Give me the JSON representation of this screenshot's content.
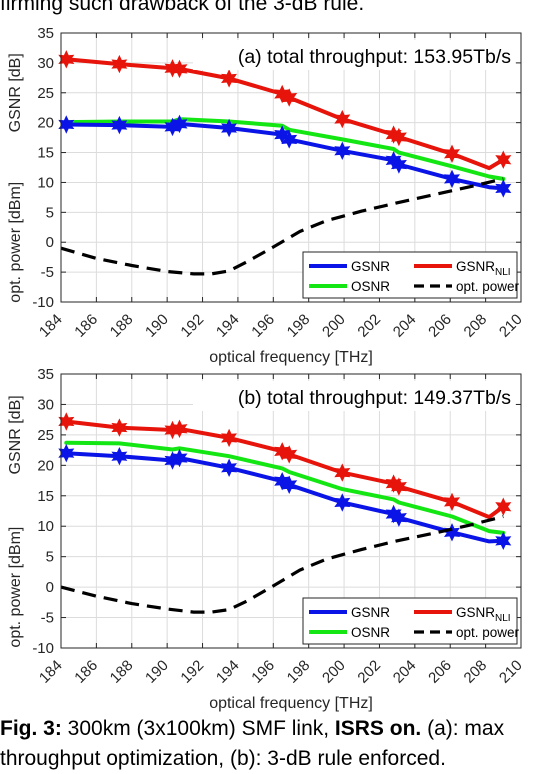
{
  "intro_text": "firming such drawback of the 3-dB rule.",
  "caption": {
    "label": "Fig. 3:",
    "part1": " 300km (3x100km) SMF link, ",
    "bold2": "ISRS on.",
    "part3": " (a): max",
    "line2": "throughput optimization, (b): 3-dB rule enforced."
  },
  "colors": {
    "gsnr": "#0a14e6",
    "gsnr_nli": "#e6140a",
    "osnr": "#14e614",
    "power": "#000000"
  },
  "chart_data": [
    {
      "type": "line",
      "title": "(a) total throughput: 153.95Tb/s",
      "xlabel": "optical frequency [THz]",
      "ylabel_upper": "GSNR [dB]",
      "ylabel_lower": "opt. power [dBm]",
      "xlim": [
        184,
        210
      ],
      "ylim": [
        -10,
        35
      ],
      "x_ticks": [
        184,
        186,
        188,
        190,
        192,
        194,
        196,
        198,
        200,
        202,
        204,
        206,
        208,
        210
      ],
      "y_ticks": [
        -10,
        -5,
        0,
        5,
        10,
        15,
        20,
        25,
        30,
        35
      ],
      "grid": true,
      "legend": {
        "position": "bottom-right",
        "entries": [
          {
            "label": "GSNR",
            "sub": "",
            "series": "gsnr"
          },
          {
            "label": "GSNR",
            "sub": "NLI",
            "series": "gsnr_nli"
          },
          {
            "label": "OSNR",
            "sub": "",
            "series": "osnr"
          },
          {
            "label": "opt. power",
            "sub": "",
            "series": "power"
          }
        ]
      },
      "series": [
        {
          "key": "gsnr_nli",
          "name": "GSNR_NLI",
          "x": [
            184.3,
            187.3,
            190.3,
            190.7,
            193.5,
            196.5,
            196.9,
            199.9,
            202.8,
            203.1,
            206.1,
            208.2,
            209
          ],
          "y": [
            30.6,
            29.8,
            29.1,
            29,
            27.4,
            24.8,
            24.2,
            20.6,
            18,
            17.6,
            14.8,
            12.4,
            13.8
          ],
          "markers_x": [
            184.3,
            187.3,
            190.3,
            190.7,
            193.5,
            196.5,
            196.9,
            199.9,
            202.8,
            203.1,
            206.1,
            209
          ],
          "markers_y": [
            30.6,
            29.8,
            29.1,
            29,
            27.4,
            24.8,
            24.2,
            20.6,
            18,
            17.6,
            14.8,
            13.8
          ]
        },
        {
          "key": "osnr",
          "name": "OSNR",
          "x": [
            184.3,
            187.3,
            190.3,
            190.7,
            193.5,
            196.5,
            196.9,
            199.9,
            202.8,
            203.1,
            206.1,
            208.2,
            209
          ],
          "y": [
            20.1,
            20.2,
            20.2,
            20.6,
            20.2,
            19.5,
            18.8,
            17.2,
            15.6,
            15,
            12.7,
            11,
            10.6
          ]
        },
        {
          "key": "gsnr",
          "name": "GSNR",
          "x": [
            184.3,
            187.3,
            190.3,
            190.7,
            193.5,
            196.5,
            196.9,
            199.9,
            202.8,
            203.1,
            206.1,
            208.2,
            209
          ],
          "y": [
            19.7,
            19.6,
            19.3,
            19.8,
            19.1,
            18,
            17.2,
            15.3,
            13.7,
            13,
            10.6,
            9.2,
            9
          ],
          "markers_x": [
            184.3,
            187.3,
            190.3,
            190.7,
            193.5,
            196.5,
            196.9,
            199.9,
            202.8,
            203.1,
            206.1,
            209
          ],
          "markers_y": [
            19.7,
            19.6,
            19.3,
            19.8,
            19.1,
            18,
            17.2,
            15.3,
            13.7,
            13,
            10.6,
            9
          ]
        },
        {
          "key": "power",
          "name": "opt. power",
          "dashed": true,
          "x": [
            184,
            186,
            188,
            190,
            191.5,
            192.5,
            193.5,
            194.5,
            196,
            197.5,
            199,
            201,
            203,
            205,
            207,
            209
          ],
          "y": [
            -1,
            -2.7,
            -3.9,
            -4.9,
            -5.3,
            -5.3,
            -4.8,
            -3.3,
            -0.8,
            1.8,
            3.6,
            5.2,
            6.6,
            7.9,
            9.2,
            10.6
          ]
        }
      ]
    },
    {
      "type": "line",
      "title": "(b) total throughput: 149.37Tb/s",
      "xlabel": "optical frequency [THz]",
      "ylabel_upper": "GSNR [dB]",
      "ylabel_lower": "opt. power [dBm]",
      "xlim": [
        184,
        210
      ],
      "ylim": [
        -10,
        35
      ],
      "x_ticks": [
        184,
        186,
        188,
        190,
        192,
        194,
        196,
        198,
        200,
        202,
        204,
        206,
        208,
        210
      ],
      "y_ticks": [
        -10,
        -5,
        0,
        5,
        10,
        15,
        20,
        25,
        30,
        35
      ],
      "grid": true,
      "legend": {
        "position": "bottom-right",
        "entries": [
          {
            "label": "GSNR",
            "sub": "",
            "series": "gsnr"
          },
          {
            "label": "GSNR",
            "sub": "NLI",
            "series": "gsnr_nli"
          },
          {
            "label": "OSNR",
            "sub": "",
            "series": "osnr"
          },
          {
            "label": "opt. power",
            "sub": "",
            "series": "power"
          }
        ]
      },
      "series": [
        {
          "key": "gsnr_nli",
          "name": "GSNR_NLI",
          "x": [
            184.3,
            187.3,
            190.3,
            190.7,
            193.5,
            196.5,
            196.9,
            199.9,
            202.8,
            203.1,
            206.1,
            208.2,
            209
          ],
          "y": [
            27.2,
            26.2,
            25.8,
            26,
            24.5,
            22.3,
            21.8,
            18.8,
            17,
            16.5,
            14,
            11.5,
            13.2
          ],
          "markers_x": [
            184.3,
            187.3,
            190.3,
            190.7,
            193.5,
            196.5,
            196.9,
            199.9,
            202.8,
            203.1,
            206.1,
            209
          ],
          "markers_y": [
            27.2,
            26.2,
            25.8,
            26,
            24.5,
            22.3,
            21.8,
            18.8,
            17,
            16.5,
            14,
            13.2
          ]
        },
        {
          "key": "osnr",
          "name": "OSNR",
          "x": [
            184.3,
            187.3,
            190.3,
            190.7,
            193.5,
            196.5,
            196.9,
            199.9,
            202.8,
            203.1,
            206.1,
            208.2,
            209
          ],
          "y": [
            23.7,
            23.6,
            22.6,
            22.8,
            21.5,
            19.5,
            18.9,
            16.1,
            14.4,
            13.9,
            11.6,
            9.2,
            8.9
          ]
        },
        {
          "key": "gsnr",
          "name": "GSNR",
          "x": [
            184.3,
            187.3,
            190.3,
            190.7,
            193.5,
            196.5,
            196.9,
            199.9,
            202.8,
            203.1,
            206.1,
            208.2,
            209
          ],
          "y": [
            22,
            21.5,
            20.8,
            21.2,
            19.6,
            17.4,
            16.8,
            13.9,
            12,
            11.4,
            9,
            7.5,
            7.6
          ],
          "markers_x": [
            184.3,
            187.3,
            190.3,
            190.7,
            193.5,
            196.5,
            196.9,
            199.9,
            202.8,
            203.1,
            206.1,
            209
          ],
          "markers_y": [
            22,
            21.5,
            20.8,
            21.2,
            19.6,
            17.4,
            16.8,
            13.9,
            12,
            11.4,
            9,
            7.6
          ]
        },
        {
          "key": "power",
          "name": "opt. power",
          "dashed": true,
          "x": [
            184,
            186,
            188,
            190,
            191.5,
            192.5,
            193.5,
            194.5,
            196,
            197.5,
            199,
            201,
            203,
            205,
            207,
            209
          ],
          "y": [
            0,
            -1.5,
            -2.7,
            -3.6,
            -4.1,
            -4.1,
            -3.7,
            -2.3,
            0.2,
            2.8,
            4.6,
            6.2,
            7.6,
            8.8,
            10.1,
            11.6
          ]
        }
      ]
    }
  ]
}
